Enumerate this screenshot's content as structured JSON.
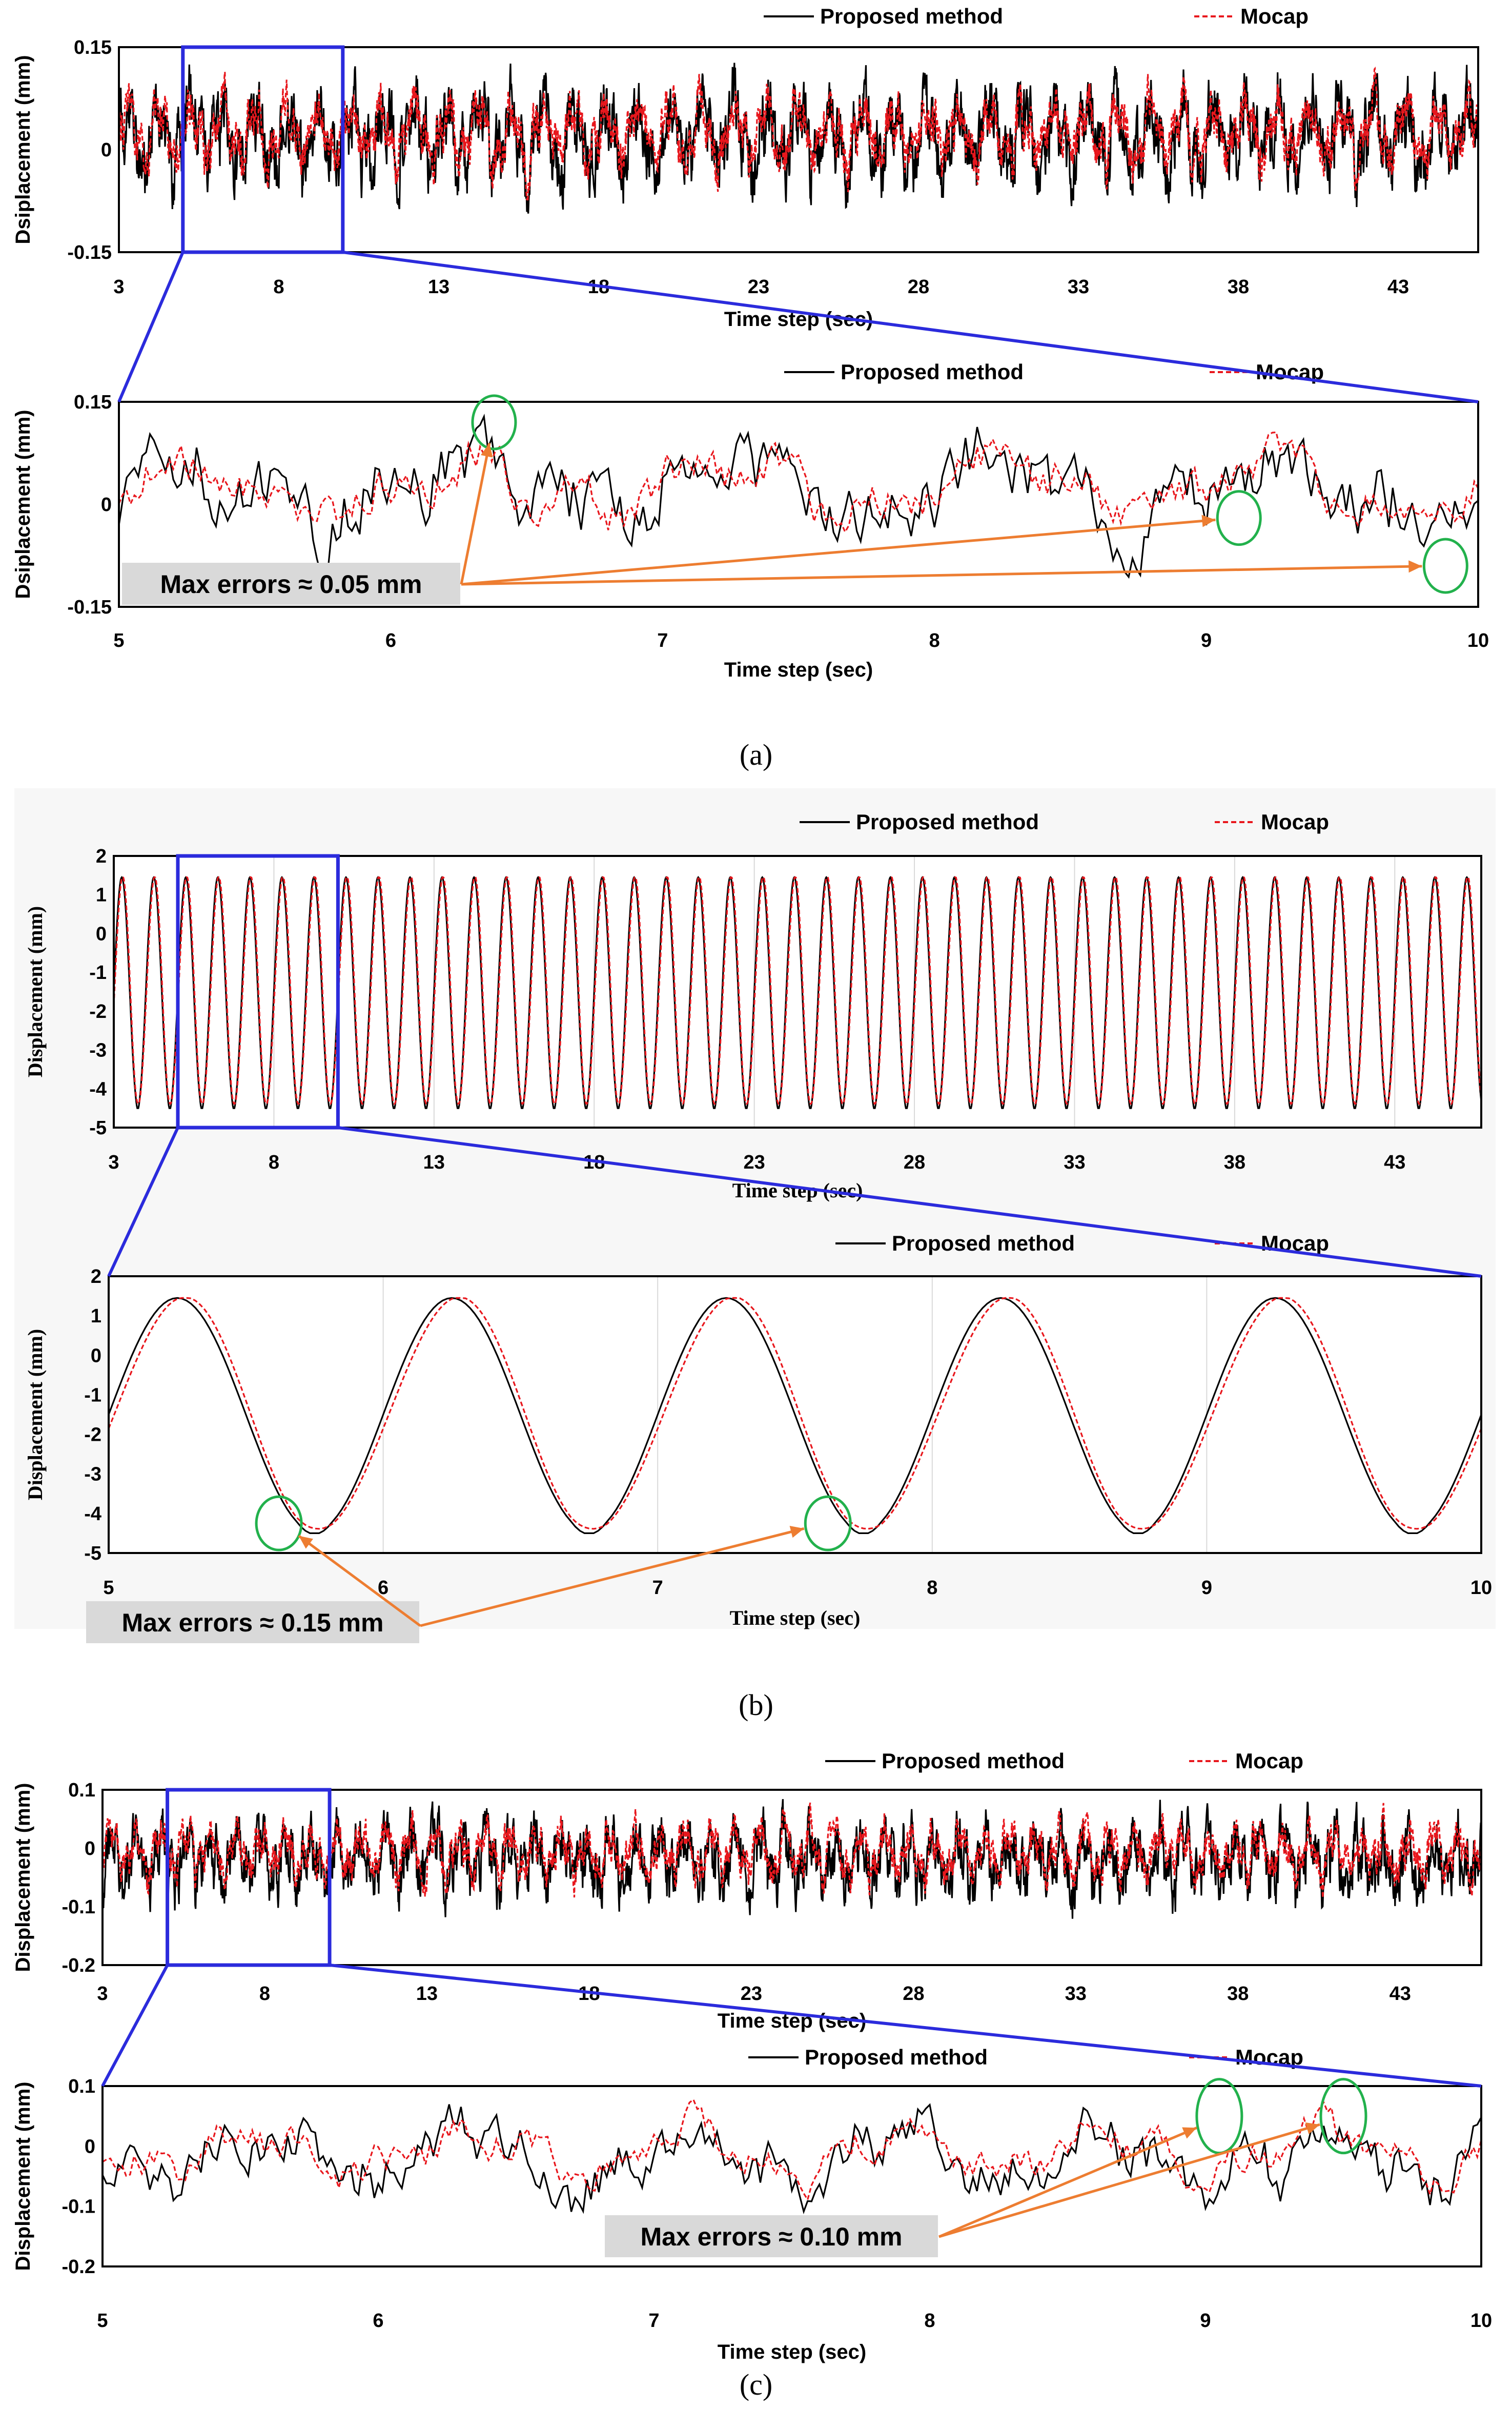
{
  "legend": {
    "proposed": "Proposed method",
    "mocap": "Mocap"
  },
  "colors": {
    "proposed": "#000000",
    "mocap": "#e8171d",
    "zoom": "#2b2bdc",
    "ellipse": "#22b14c",
    "arrow": "#ed7d31"
  },
  "captions": {
    "a": "(a)",
    "b": "(b)",
    "c": "(c)"
  },
  "chart_data": [
    {
      "id": "a-full",
      "type": "line",
      "panel": "a",
      "xlabel": "Time step (sec)",
      "ylabel": "Dsiplacement (mm)",
      "xlim": [
        3,
        45.5
      ],
      "ylim": [
        -0.15,
        0.15
      ],
      "xticks": [
        "3",
        "8",
        "13",
        "18",
        "23",
        "28",
        "33",
        "38",
        "43"
      ],
      "yticks": [
        "0.15",
        "0",
        "-0.15"
      ],
      "signal": {
        "kind": "noisy",
        "base_freq_hz": 1.0,
        "amplitude_mm": 0.05,
        "offset_mm": 0.02,
        "error_mm": 0.05
      },
      "series": [
        {
          "name": "Proposed method"
        },
        {
          "name": "Mocap"
        }
      ],
      "zoom_window": [
        5,
        10
      ]
    },
    {
      "id": "a-zoom",
      "type": "line",
      "panel": "a",
      "xlabel": "Time step (sec)",
      "ylabel": "Dsiplacement (mm)",
      "xlim": [
        5,
        10
      ],
      "ylim": [
        -0.15,
        0.15
      ],
      "xticks": [
        "5",
        "6",
        "7",
        "8",
        "9",
        "10"
      ],
      "yticks": [
        "0.15",
        "0",
        "-0.15"
      ],
      "signal": {
        "kind": "noisy",
        "base_freq_hz": 1.0,
        "amplitude_mm": 0.05,
        "offset_mm": 0.02,
        "error_mm": 0.05
      },
      "series": [
        {
          "name": "Proposed method"
        },
        {
          "name": "Mocap"
        }
      ],
      "annotation": {
        "text": "Max errors ≈ 0.05 mm",
        "marked_points": [
          {
            "x": 6.38,
            "y": 0.12
          },
          {
            "x": 9.12,
            "y": -0.02
          },
          {
            "x": 9.88,
            "y": -0.09
          }
        ]
      }
    },
    {
      "id": "b-full",
      "type": "line",
      "panel": "b",
      "xlabel": "Time step (sec)",
      "ylabel": "Displacement (mm)",
      "xlim": [
        3,
        45.7
      ],
      "ylim": [
        -5,
        2
      ],
      "xticks": [
        "3",
        "8",
        "13",
        "18",
        "23",
        "28",
        "33",
        "38",
        "43"
      ],
      "yticks": [
        "2",
        "1",
        "0",
        "-1",
        "-2",
        "-3",
        "-4",
        "-5"
      ],
      "signal": {
        "kind": "sine",
        "freq_hz": 1.0,
        "max_mm": 1.45,
        "min_mm": -4.45,
        "error_mm": 0.15
      },
      "series": [
        {
          "name": "Proposed method"
        },
        {
          "name": "Mocap"
        }
      ],
      "zoom_window": [
        5,
        10
      ]
    },
    {
      "id": "b-zoom",
      "type": "line",
      "panel": "b",
      "xlabel": "Time step (sec)",
      "ylabel": "Displacement (mm)",
      "xlim": [
        5,
        10
      ],
      "ylim": [
        -5,
        2
      ],
      "xticks": [
        "5",
        "6",
        "7",
        "8",
        "9",
        "10"
      ],
      "yticks": [
        "2",
        "1",
        "0",
        "-1",
        "-2",
        "-3",
        "-4",
        "-5"
      ],
      "signal": {
        "kind": "sine",
        "freq_hz": 1.0,
        "max_mm": 1.45,
        "min_mm": -4.45,
        "error_mm": 0.15
      },
      "series": [
        {
          "name": "Proposed method"
        },
        {
          "name": "Mocap"
        }
      ],
      "annotation": {
        "text": "Max errors ≈ 0.15 mm",
        "marked_points": [
          {
            "x": 5.62,
            "y": -4.25
          },
          {
            "x": 7.62,
            "y": -4.25
          }
        ]
      }
    },
    {
      "id": "c-full",
      "type": "line",
      "panel": "c",
      "xlabel": "Time step (sec)",
      "ylabel": "Displacement (mm)",
      "xlim": [
        3,
        45.5
      ],
      "ylim": [
        -0.2,
        0.1
      ],
      "xticks": [
        "3",
        "8",
        "13",
        "18",
        "23",
        "28",
        "33",
        "38",
        "43"
      ],
      "yticks": [
        "0.1",
        "0",
        "-0.1",
        "-0.2"
      ],
      "signal": {
        "kind": "noisy",
        "base_freq_hz": 1.3,
        "amplitude_mm": 0.045,
        "offset_mm": -0.02,
        "error_mm": 0.1
      },
      "series": [
        {
          "name": "Proposed method"
        },
        {
          "name": "Mocap"
        }
      ],
      "zoom_window": [
        5,
        10
      ]
    },
    {
      "id": "c-zoom",
      "type": "line",
      "panel": "c",
      "xlabel": "Time step (sec)",
      "ylabel": "Displacement (mm)",
      "xlim": [
        5,
        10
      ],
      "ylim": [
        -0.2,
        0.1
      ],
      "xticks": [
        "5",
        "6",
        "7",
        "8",
        "9",
        "10"
      ],
      "yticks": [
        "0.1",
        "0",
        "-0.1",
        "-0.2"
      ],
      "signal": {
        "kind": "noisy",
        "base_freq_hz": 1.3,
        "amplitude_mm": 0.045,
        "offset_mm": -0.02,
        "error_mm": 0.1
      },
      "series": [
        {
          "name": "Proposed method"
        },
        {
          "name": "Mocap"
        }
      ],
      "annotation": {
        "text": "Max errors ≈ 0.10 mm",
        "marked_points": [
          {
            "x": 9.05,
            "y": 0.05
          },
          {
            "x": 9.5,
            "y": 0.05
          }
        ]
      }
    }
  ]
}
